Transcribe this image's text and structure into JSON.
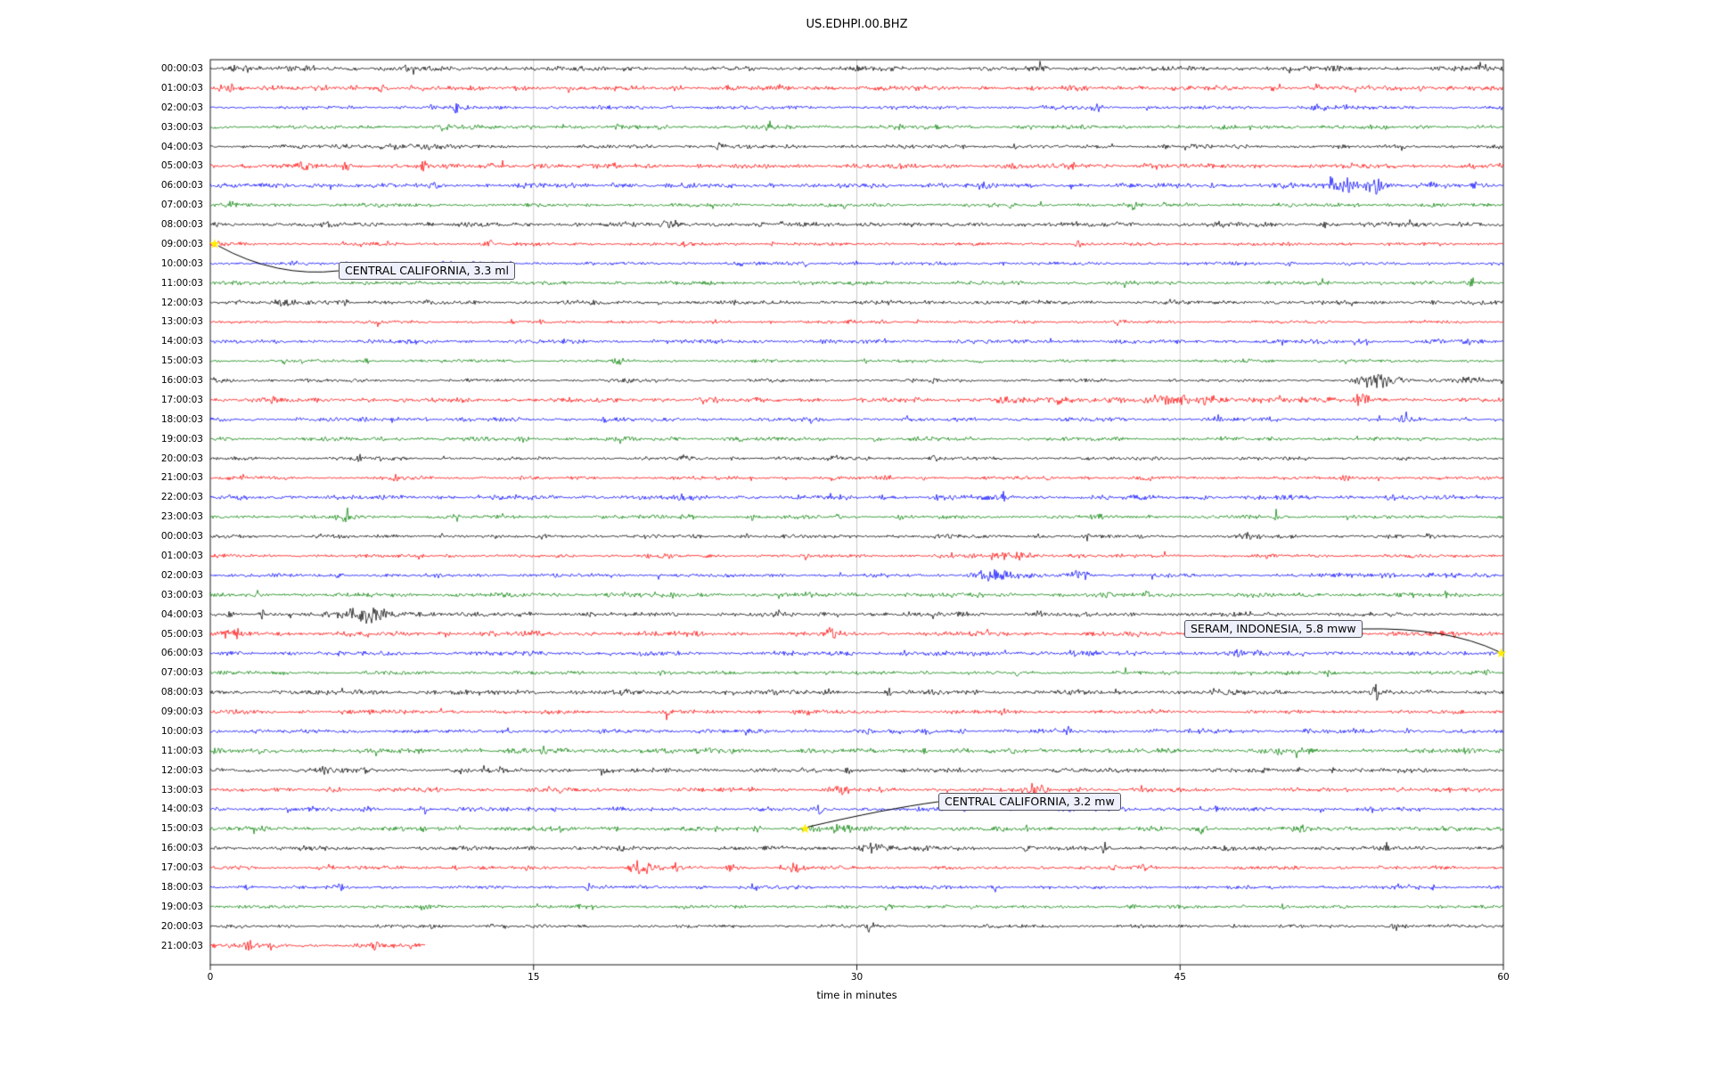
{
  "chart_data": {
    "type": "line",
    "subtype": "seismogram-dayplot",
    "title": "US.EDHPI.00.BHZ",
    "xlabel": "time in minutes",
    "x_range": [
      0,
      60
    ],
    "x_ticks": [
      "0",
      "15",
      "30",
      "45",
      "60"
    ],
    "x_tick_values": [
      0,
      15,
      30,
      45,
      60
    ],
    "grid_minutes": [
      15,
      30,
      45
    ],
    "trace_color_cycle": [
      "#000000",
      "#ff0000",
      "#0000ff",
      "#008000"
    ],
    "marker_color": "#ffee00",
    "rows": [
      {
        "label": "00:00:03",
        "color": "#000000"
      },
      {
        "label": "01:00:03",
        "color": "#ff0000"
      },
      {
        "label": "02:00:03",
        "color": "#0000ff"
      },
      {
        "label": "03:00:03",
        "color": "#008000"
      },
      {
        "label": "04:00:03",
        "color": "#000000"
      },
      {
        "label": "05:00:03",
        "color": "#ff0000"
      },
      {
        "label": "06:00:03",
        "color": "#0000ff"
      },
      {
        "label": "07:00:03",
        "color": "#008000"
      },
      {
        "label": "08:00:03",
        "color": "#000000"
      },
      {
        "label": "09:00:03",
        "color": "#ff0000"
      },
      {
        "label": "10:00:03",
        "color": "#0000ff"
      },
      {
        "label": "11:00:03",
        "color": "#008000"
      },
      {
        "label": "12:00:03",
        "color": "#000000"
      },
      {
        "label": "13:00:03",
        "color": "#ff0000"
      },
      {
        "label": "14:00:03",
        "color": "#0000ff"
      },
      {
        "label": "15:00:03",
        "color": "#008000"
      },
      {
        "label": "16:00:03",
        "color": "#000000"
      },
      {
        "label": "17:00:03",
        "color": "#ff0000"
      },
      {
        "label": "18:00:03",
        "color": "#0000ff"
      },
      {
        "label": "19:00:03",
        "color": "#008000"
      },
      {
        "label": "20:00:03",
        "color": "#000000"
      },
      {
        "label": "21:00:03",
        "color": "#ff0000"
      },
      {
        "label": "22:00:03",
        "color": "#0000ff"
      },
      {
        "label": "23:00:03",
        "color": "#008000"
      },
      {
        "label": "00:00:03",
        "color": "#000000"
      },
      {
        "label": "01:00:03",
        "color": "#ff0000"
      },
      {
        "label": "02:00:03",
        "color": "#0000ff"
      },
      {
        "label": "03:00:03",
        "color": "#008000"
      },
      {
        "label": "04:00:03",
        "color": "#000000"
      },
      {
        "label": "05:00:03",
        "color": "#ff0000"
      },
      {
        "label": "06:00:03",
        "color": "#0000ff"
      },
      {
        "label": "07:00:03",
        "color": "#008000"
      },
      {
        "label": "08:00:03",
        "color": "#000000"
      },
      {
        "label": "09:00:03",
        "color": "#ff0000"
      },
      {
        "label": "10:00:03",
        "color": "#0000ff"
      },
      {
        "label": "11:00:03",
        "color": "#008000"
      },
      {
        "label": "12:00:03",
        "color": "#000000"
      },
      {
        "label": "13:00:03",
        "color": "#ff0000"
      },
      {
        "label": "14:00:03",
        "color": "#0000ff"
      },
      {
        "label": "15:00:03",
        "color": "#008000"
      },
      {
        "label": "16:00:03",
        "color": "#000000"
      },
      {
        "label": "17:00:03",
        "color": "#ff0000"
      },
      {
        "label": "18:00:03",
        "color": "#0000ff"
      },
      {
        "label": "19:00:03",
        "color": "#008000"
      },
      {
        "label": "20:00:03",
        "color": "#000000"
      },
      {
        "label": "21:00:03",
        "color": "#ff0000"
      }
    ],
    "events": [
      {
        "label": "CENTRAL CALIFORNIA, 3.3 ml",
        "row": 9,
        "row_label": "09:00:03",
        "minute": 0.2
      },
      {
        "label": "SERAM, INDONESIA, 5.8 mww",
        "row": 30,
        "row_label": "06:00:03",
        "minute": 59.9
      },
      {
        "label": "CENTRAL CALIFORNIA, 3.2 mw",
        "row": 39,
        "row_label": "15:00:03",
        "minute": 27.6
      }
    ],
    "partial_row": {
      "row": 45,
      "end_minute": 10
    },
    "bursts": [
      {
        "row": 0,
        "center": 59,
        "sigma": 0.15,
        "amp": 4
      },
      {
        "row": 1,
        "center": 1,
        "sigma": 0.4,
        "amp": 3
      },
      {
        "row": 1,
        "center": 8,
        "sigma": 0.15,
        "amp": 2.5
      },
      {
        "row": 1,
        "center": 49.5,
        "sigma": 0.2,
        "amp": 2.5
      },
      {
        "row": 1,
        "center": 57.5,
        "sigma": 0.15,
        "amp": 3
      },
      {
        "row": 2,
        "center": 10.3,
        "sigma": 0.12,
        "amp": 3.5
      },
      {
        "row": 2,
        "center": 11.3,
        "sigma": 0.12,
        "amp": 3.5
      },
      {
        "row": 2,
        "center": 41,
        "sigma": 0.3,
        "amp": 2.5
      },
      {
        "row": 2,
        "center": 51.5,
        "sigma": 0.4,
        "amp": 3
      },
      {
        "row": 3,
        "center": 10.8,
        "sigma": 0.25,
        "amp": 3
      },
      {
        "row": 3,
        "center": 20.8,
        "sigma": 0.15,
        "amp": 2.5
      },
      {
        "row": 4,
        "center": 8.5,
        "sigma": 1.2,
        "amp": 2.5
      },
      {
        "row": 4,
        "center": 23.6,
        "sigma": 0.2,
        "amp": 3
      },
      {
        "row": 5,
        "center": 15.2,
        "sigma": 0.15,
        "amp": 2.5
      },
      {
        "row": 5,
        "center": 43.6,
        "sigma": 0.3,
        "amp": 2
      },
      {
        "row": 6,
        "center": 52.8,
        "sigma": 0.5,
        "amp": 6
      },
      {
        "row": 6,
        "center": 54,
        "sigma": 0.3,
        "amp": 5
      },
      {
        "row": 9,
        "center": 0.3,
        "sigma": 0.3,
        "amp": 2
      },
      {
        "row": 16,
        "center": 0.5,
        "sigma": 0.5,
        "amp": 2
      },
      {
        "row": 16,
        "center": 54.3,
        "sigma": 0.7,
        "amp": 5
      },
      {
        "row": 16,
        "center": 58.2,
        "sigma": 0.9,
        "amp": 3.5
      },
      {
        "row": 17,
        "center": 45,
        "sigma": 4,
        "amp": 2.2
      },
      {
        "row": 17,
        "center": 53.5,
        "sigma": 0.2,
        "amp": 3
      },
      {
        "row": 18,
        "center": 8.5,
        "sigma": 0.15,
        "amp": 3
      },
      {
        "row": 18,
        "center": 55.4,
        "sigma": 0.12,
        "amp": 4
      },
      {
        "row": 20,
        "center": 6.9,
        "sigma": 0.12,
        "amp": 3
      },
      {
        "row": 20,
        "center": 22,
        "sigma": 0.15,
        "amp": 3
      },
      {
        "row": 20,
        "center": 28.9,
        "sigma": 0.15,
        "amp": 3
      },
      {
        "row": 20,
        "center": 33.6,
        "sigma": 0.15,
        "amp": 3
      },
      {
        "row": 21,
        "center": 31.4,
        "sigma": 0.2,
        "amp": 2.5
      },
      {
        "row": 21,
        "center": 43.5,
        "sigma": 0.3,
        "amp": 2
      },
      {
        "row": 21,
        "center": 53.5,
        "sigma": 0.2,
        "amp": 2.5
      },
      {
        "row": 23,
        "center": 6.3,
        "sigma": 0.2,
        "amp": 3
      },
      {
        "row": 23,
        "center": 11.4,
        "sigma": 0.15,
        "amp": 3
      },
      {
        "row": 24,
        "center": 48.2,
        "sigma": 0.2,
        "amp": 2.5
      },
      {
        "row": 25,
        "center": 9.7,
        "sigma": 0.12,
        "amp": 3
      },
      {
        "row": 25,
        "center": 37.5,
        "sigma": 0.8,
        "amp": 3
      },
      {
        "row": 26,
        "center": 36.3,
        "sigma": 0.8,
        "amp": 5
      },
      {
        "row": 26,
        "center": 40.3,
        "sigma": 0.4,
        "amp": 4.5
      },
      {
        "row": 26,
        "center": 55,
        "sigma": 2,
        "amp": 2
      },
      {
        "row": 28,
        "center": 2.4,
        "sigma": 0.12,
        "amp": 4
      },
      {
        "row": 28,
        "center": 7.6,
        "sigma": 1,
        "amp": 5
      },
      {
        "row": 37,
        "center": 38.2,
        "sigma": 0.35,
        "amp": 3
      },
      {
        "row": 38,
        "center": 9.9,
        "sigma": 0.12,
        "amp": 4
      },
      {
        "row": 38,
        "center": 15,
        "sigma": 0.15,
        "amp": 2.5
      },
      {
        "row": 39,
        "center": 9.8,
        "sigma": 0.12,
        "amp": 3
      },
      {
        "row": 39,
        "center": 29,
        "sigma": 1,
        "amp": 2.2
      },
      {
        "row": 40,
        "center": 30.7,
        "sigma": 0.6,
        "amp": 3
      },
      {
        "row": 40,
        "center": 41.5,
        "sigma": 0.12,
        "amp": 4
      },
      {
        "row": 41,
        "center": 11.4,
        "sigma": 0.12,
        "amp": 3
      },
      {
        "row": 41,
        "center": 20,
        "sigma": 0.5,
        "amp": 4
      },
      {
        "row": 41,
        "center": 24.2,
        "sigma": 0.2,
        "amp": 3.5
      },
      {
        "row": 41,
        "center": 27.2,
        "sigma": 0.2,
        "amp": 4
      },
      {
        "row": 42,
        "center": 22.8,
        "sigma": 0.15,
        "amp": 3
      },
      {
        "row": 42,
        "center": 25.2,
        "sigma": 0.15,
        "amp": 3
      },
      {
        "row": 42,
        "center": 56.8,
        "sigma": 0.15,
        "amp": 3
      },
      {
        "row": 43,
        "center": 10.2,
        "sigma": 0.2,
        "amp": 2
      },
      {
        "row": 44,
        "center": 30.6,
        "sigma": 0.2,
        "amp": 2.5
      },
      {
        "row": 45,
        "center": 7.8,
        "sigma": 0.2,
        "amp": 3
      }
    ]
  }
}
